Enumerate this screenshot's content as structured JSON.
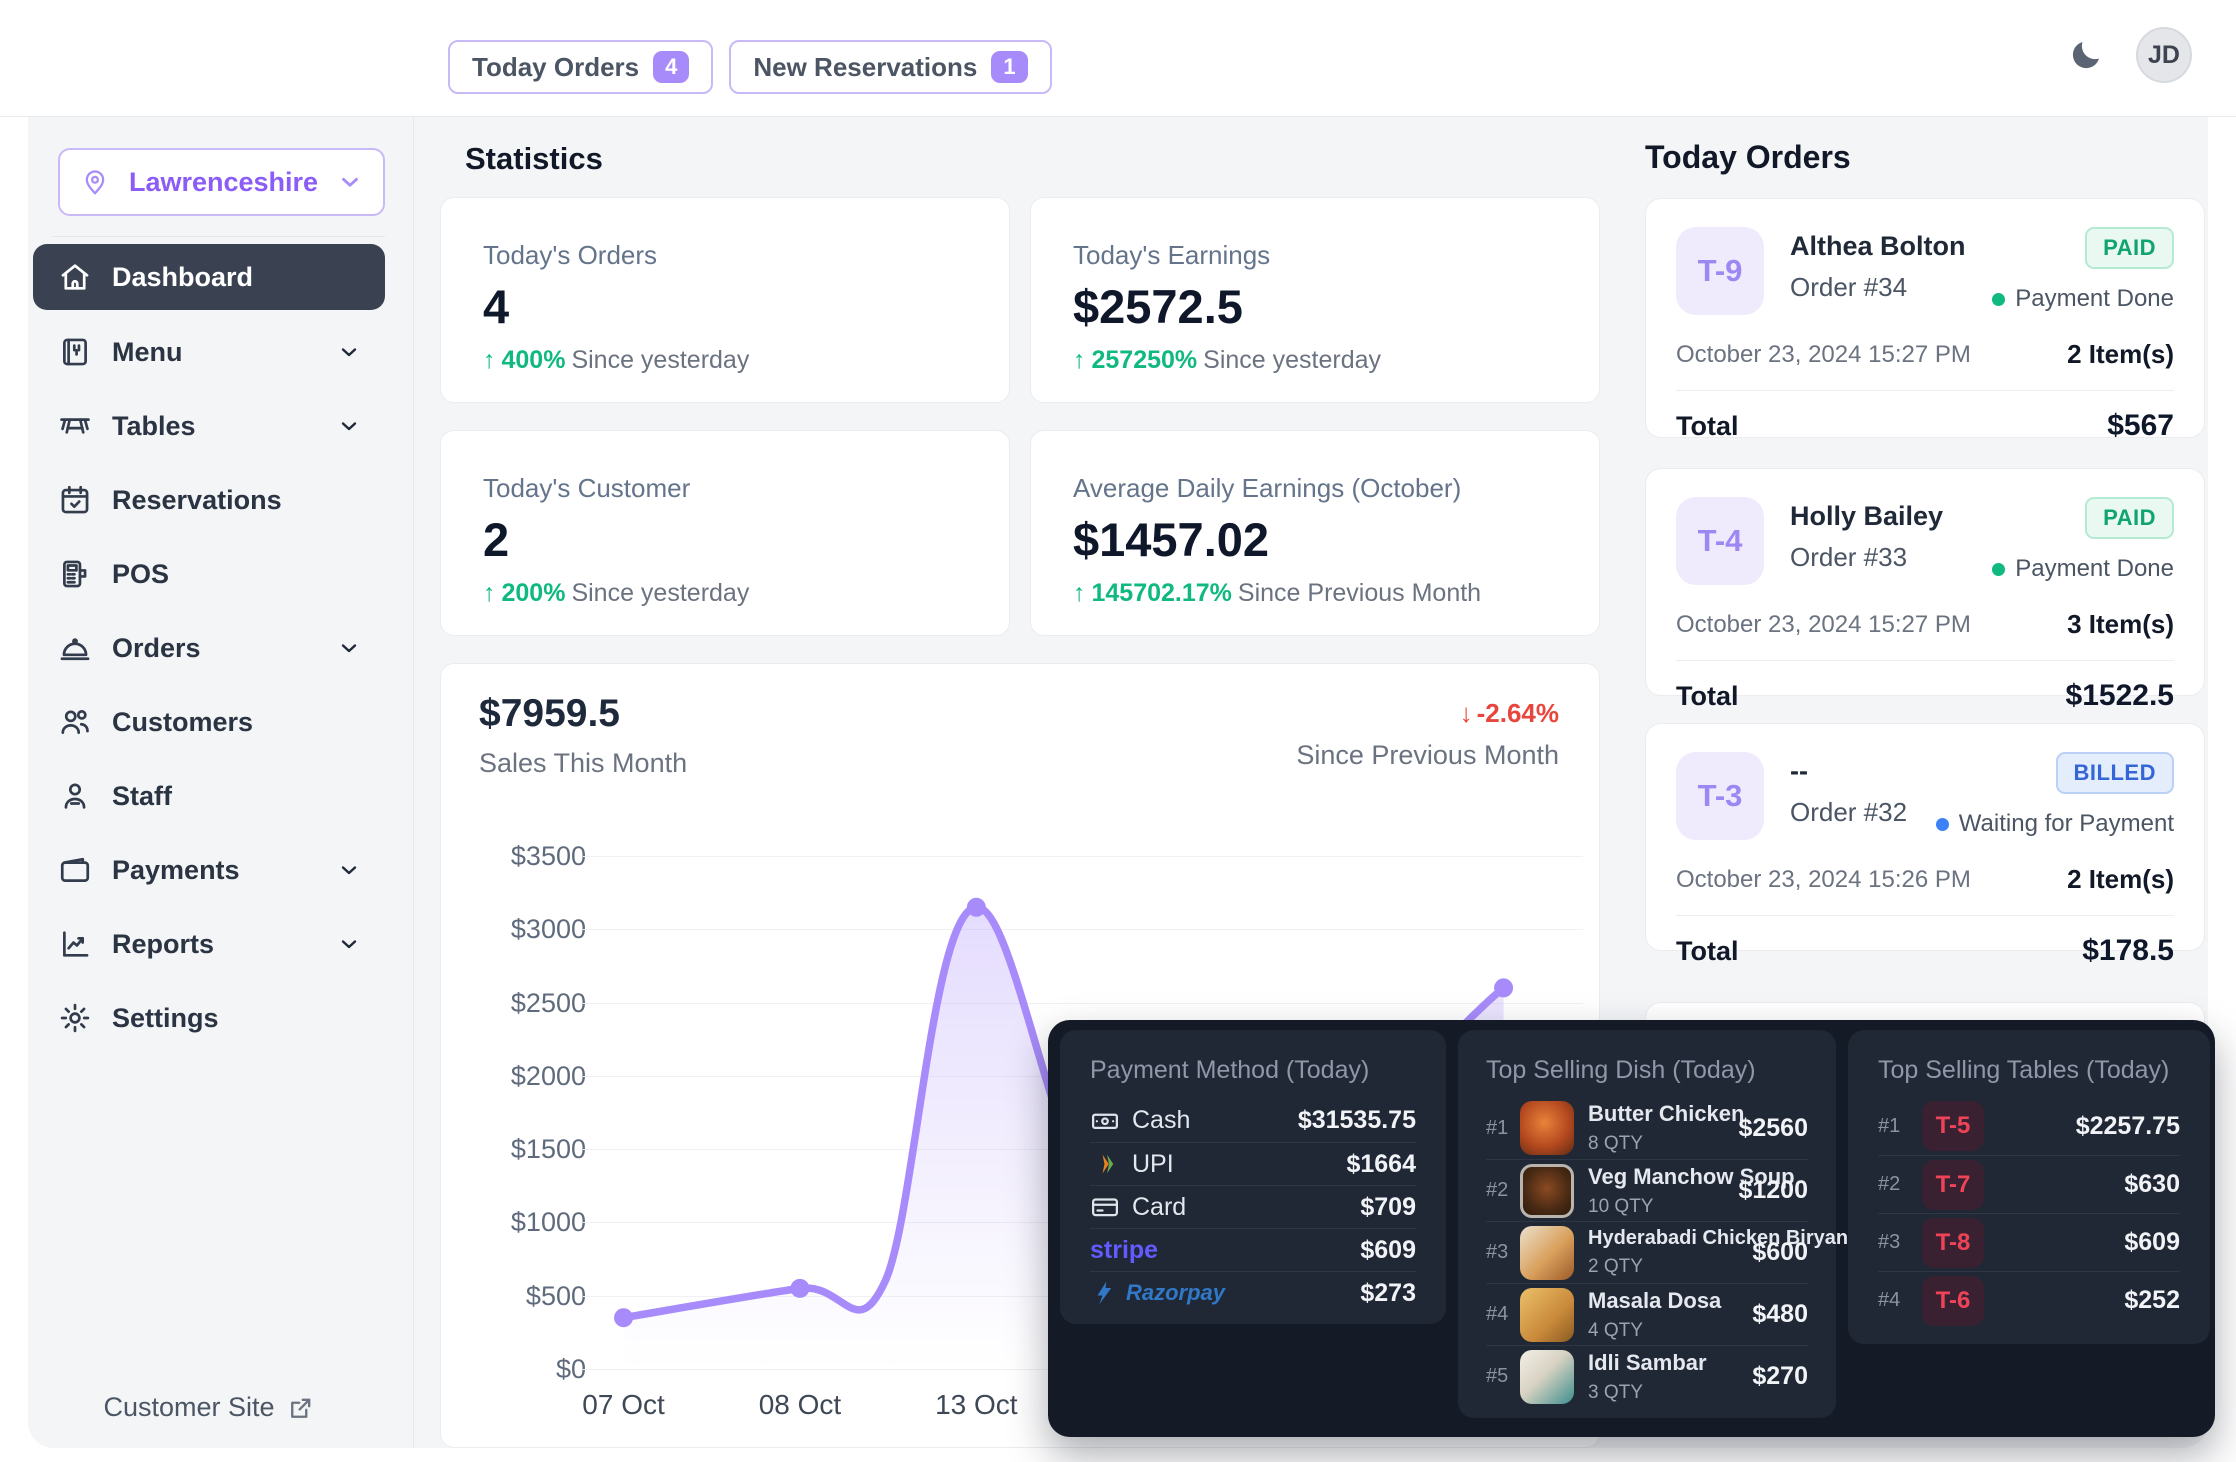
{
  "header": {
    "today_orders": {
      "label": "Today Orders",
      "count": "4"
    },
    "new_reservations": {
      "label": "New Reservations",
      "count": "1"
    },
    "avatar": "JD"
  },
  "sidebar": {
    "location": "Lawrenceshire",
    "items": [
      {
        "label": "Dashboard"
      },
      {
        "label": "Menu"
      },
      {
        "label": "Tables"
      },
      {
        "label": "Reservations"
      },
      {
        "label": "POS"
      },
      {
        "label": "Orders"
      },
      {
        "label": "Customers"
      },
      {
        "label": "Staff"
      },
      {
        "label": "Payments"
      },
      {
        "label": "Reports"
      },
      {
        "label": "Settings"
      }
    ],
    "customer_site": "Customer Site"
  },
  "stats": {
    "heading": "Statistics",
    "cards": [
      {
        "label": "Today's Orders",
        "value": "4",
        "delta": "400%",
        "note": "Since yesterday"
      },
      {
        "label": "Today's Earnings",
        "value": "$2572.5",
        "delta": "257250%",
        "note": "Since yesterday"
      },
      {
        "label": "Today's Customer",
        "value": "2",
        "delta": "200%",
        "note": "Since yesterday"
      },
      {
        "label": "Average Daily Earnings (October)",
        "value": "$1457.02",
        "delta": "145702.17%",
        "note": "Since Previous Month"
      }
    ]
  },
  "sales_chart": {
    "total": "$7959.5",
    "subtitle": "Sales This Month",
    "delta": "-2.64%",
    "delta_note": "Since Previous Month"
  },
  "chart_data": {
    "type": "line",
    "title": "Sales This Month",
    "xlabel": "",
    "ylabel": "",
    "ylim": [
      0,
      3500
    ],
    "ytick_step": 500,
    "ytick_prefix": "$",
    "grid": true,
    "legend": false,
    "line_color": "#a78bfa",
    "fill_color": "#a78bfa",
    "x_ticks": [
      {
        "pos": 0.023,
        "label": "07 Oct"
      },
      {
        "pos": 0.203,
        "label": "08 Oct"
      },
      {
        "pos": 0.383,
        "label": "13 Oct"
      }
    ],
    "points": [
      {
        "pos": 0.023,
        "value": 350,
        "label": "07 Oct",
        "dot": true
      },
      {
        "pos": 0.203,
        "value": 550,
        "label": "08 Oct",
        "dot": true
      },
      {
        "pos": 0.29,
        "value": 600,
        "label": "curve-shape",
        "dot": false
      },
      {
        "pos": 0.383,
        "value": 3150,
        "label": "13 Oct",
        "dot": true
      },
      {
        "pos": 0.56,
        "value": 700,
        "label": "hidden-behind-panel",
        "dot": false
      },
      {
        "pos": 0.921,
        "value": 2600,
        "label": "right-edge-point",
        "dot": true
      }
    ]
  },
  "today_orders_panel": {
    "heading": "Today Orders",
    "orders": [
      {
        "table": "T-9",
        "customer": "Althea Bolton",
        "order_no": "Order #34",
        "status": "PAID",
        "payment_status": "Payment Done",
        "datetime": "October 23, 2024 15:27 PM",
        "items": "2 Item(s)",
        "total_label": "Total",
        "total": "$567"
      },
      {
        "table": "T-4",
        "customer": "Holly Bailey",
        "order_no": "Order #33",
        "status": "PAID",
        "payment_status": "Payment Done",
        "datetime": "October 23, 2024 15:27 PM",
        "items": "3 Item(s)",
        "total_label": "Total",
        "total": "$1522.5"
      },
      {
        "table": "T-3",
        "customer": "--",
        "order_no": "Order #32",
        "status": "BILLED",
        "payment_status": "Waiting for Payment",
        "datetime": "October 23, 2024 15:26 PM",
        "items": "2 Item(s)",
        "total_label": "Total",
        "total": "$178.5"
      }
    ]
  },
  "payment_methods": {
    "title": "Payment Method (Today)",
    "rows": [
      {
        "label": "Cash",
        "amount": "$31535.75"
      },
      {
        "label": "UPI",
        "amount": "$1664"
      },
      {
        "label": "Card",
        "amount": "$709"
      },
      {
        "label": "stripe",
        "amount": "$609",
        "brand_color": "#635bff"
      },
      {
        "label": "Razorpay",
        "amount": "$273",
        "brand_color": "#3178c6"
      }
    ]
  },
  "top_dishes": {
    "title": "Top Selling Dish (Today)",
    "rows": [
      {
        "rank": "#1",
        "name": "Butter Chicken",
        "qty": "8 QTY",
        "amount": "$2560"
      },
      {
        "rank": "#2",
        "name": "Veg Manchow Soup",
        "qty": "10 QTY",
        "amount": "$1200"
      },
      {
        "rank": "#3",
        "name": "Hyderabadi Chicken Biryani",
        "qty": "2 QTY",
        "amount": "$600"
      },
      {
        "rank": "#4",
        "name": "Masala Dosa",
        "qty": "4 QTY",
        "amount": "$480"
      },
      {
        "rank": "#5",
        "name": "Idli Sambar",
        "qty": "3 QTY",
        "amount": "$270"
      }
    ]
  },
  "top_tables": {
    "title": "Top Selling Tables (Today)",
    "rows": [
      {
        "rank": "#1",
        "table": "T-5",
        "amount": "$2257.75"
      },
      {
        "rank": "#2",
        "table": "T-7",
        "amount": "$630"
      },
      {
        "rank": "#3",
        "table": "T-8",
        "amount": "$609"
      },
      {
        "rank": "#4",
        "table": "T-6",
        "amount": "$252"
      }
    ]
  },
  "colors": {
    "accent_purple": "#8b5cf6",
    "chart_line_purple": "#a78bfa",
    "positive_green": "#10b981",
    "negative_red": "#e8453c",
    "paid_green": "#10a46f",
    "billed_blue": "#3566d6",
    "dark_backdrop": "#141a26",
    "dark_panel": "#202836",
    "table_badge_red": "#ef4458"
  }
}
